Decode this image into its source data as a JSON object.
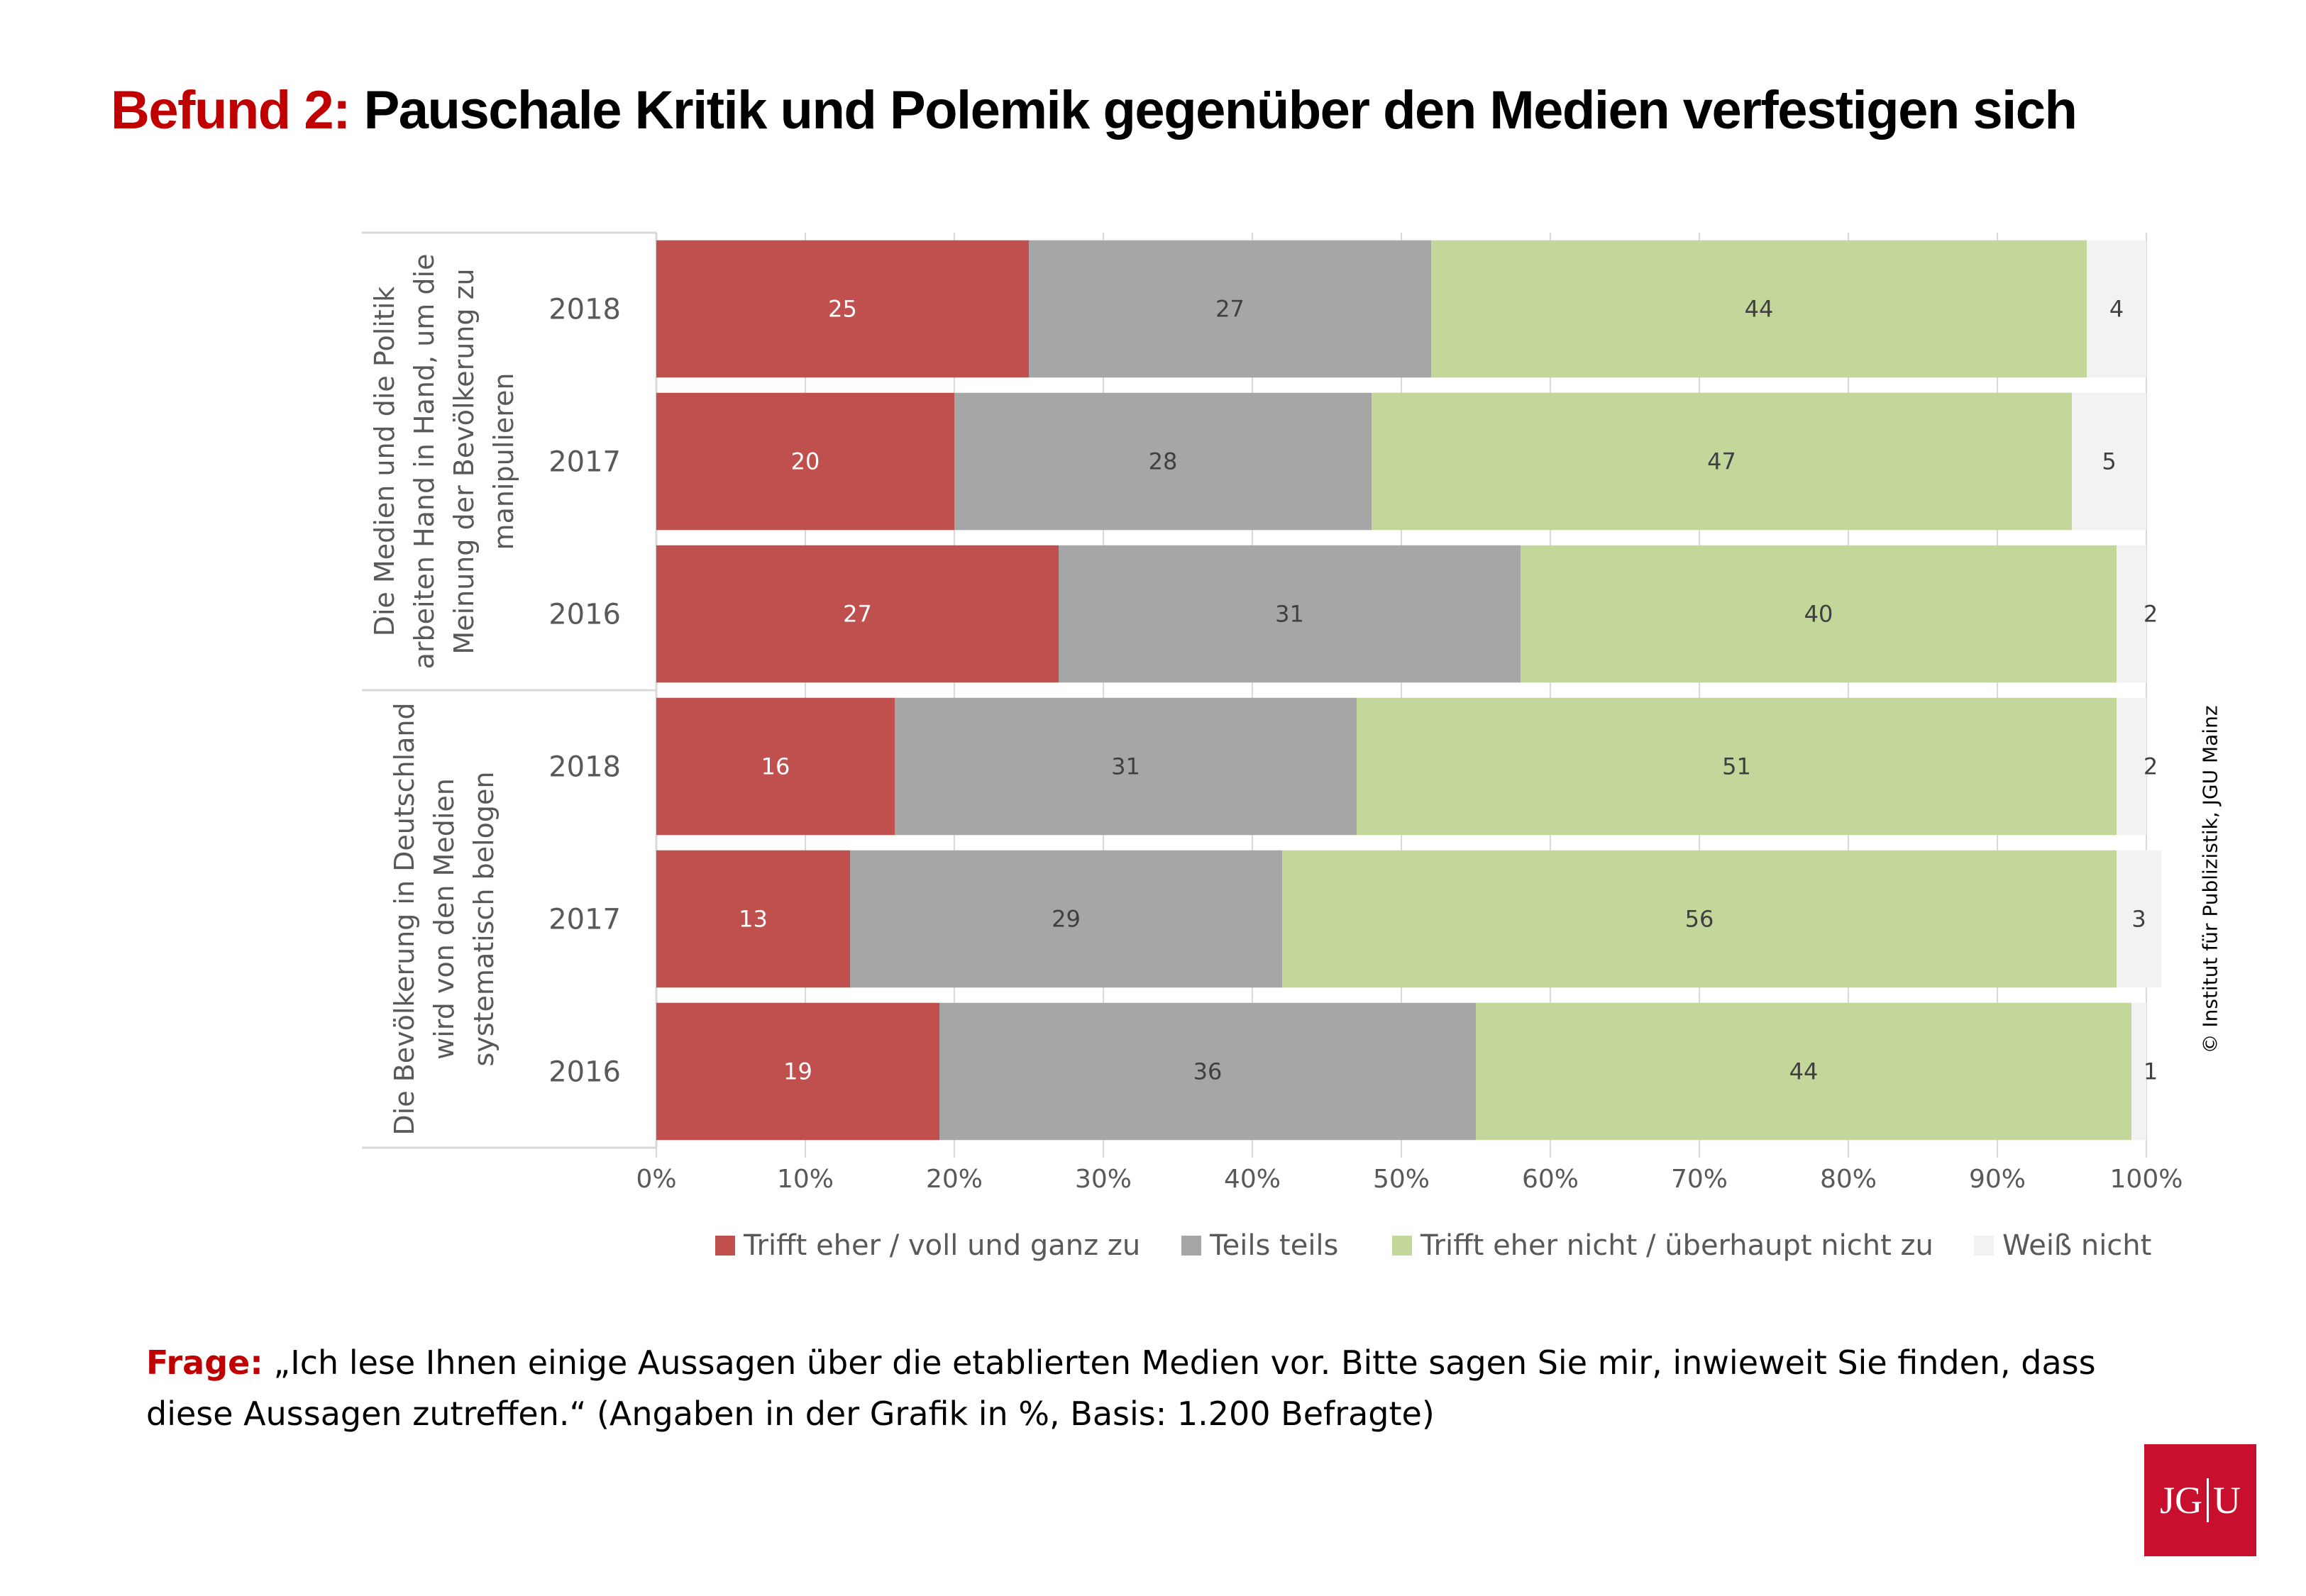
{
  "headline": {
    "prefix": "Befund 2:",
    "text": "Pauschale Kritik und Polemik gegenüber den Medien verfestigen sich"
  },
  "copyright": "© Institut für Publizistik, JGU Mainz",
  "question": {
    "label": "Frage:",
    "text": "„Ich lese Ihnen einige Aussagen über die etablierten Medien vor. Bitte sagen Sie mir, inwieweit Sie finden, dass diese Aussagen zutreffen.“ (Angaben in der Grafik in %, Basis: 1.200 Befragte)"
  },
  "logo": {
    "left": "JG",
    "right": "U"
  },
  "chart_data": {
    "type": "bar",
    "orientation": "horizontal",
    "stacked": "percent",
    "xlim": [
      0,
      100
    ],
    "x_ticks": [
      "0%",
      "10%",
      "20%",
      "30%",
      "40%",
      "50%",
      "60%",
      "70%",
      "80%",
      "90%",
      "100%"
    ],
    "grid": true,
    "legend_position": "bottom",
    "series": [
      {
        "name": "Trifft eher / voll und ganz zu",
        "color": "#c0504d",
        "label_color": "#ffffff"
      },
      {
        "name": "Teils teils",
        "color": "#a6a6a6",
        "label_color": "#404040"
      },
      {
        "name": "Trifft eher nicht / überhaupt nicht zu",
        "color": "#c4d79b",
        "label_color": "#404040"
      },
      {
        "name": "Weiß nicht",
        "color": "#f2f2f2",
        "label_color": "#404040"
      }
    ],
    "groups": [
      {
        "label": "Die Medien und die Politik arbeiten Hand in Hand, um die Meinung der Bevölkerung zu manipulieren",
        "label_lines": [
          "Die Medien und die Politik",
          "arbeiten Hand in Hand, um die",
          "Meinung der Bevölkerung zu",
          "manipulieren"
        ],
        "rows": [
          {
            "year": "2018",
            "values": [
              25,
              27,
              44,
              4
            ]
          },
          {
            "year": "2017",
            "values": [
              20,
              28,
              47,
              5
            ]
          },
          {
            "year": "2016",
            "values": [
              27,
              31,
              40,
              2
            ]
          }
        ]
      },
      {
        "label": "Die Bevölkerung in Deutschland wird von den Medien systematisch belogen",
        "label_lines": [
          "Die Bevölkerung in Deutschland",
          "wird von den Medien",
          "systematisch belogen"
        ],
        "rows": [
          {
            "year": "2018",
            "values": [
              16,
              31,
              51,
              2
            ]
          },
          {
            "year": "2017",
            "values": [
              13,
              29,
              56,
              3
            ]
          },
          {
            "year": "2016",
            "values": [
              19,
              36,
              44,
              1
            ]
          }
        ]
      }
    ]
  }
}
